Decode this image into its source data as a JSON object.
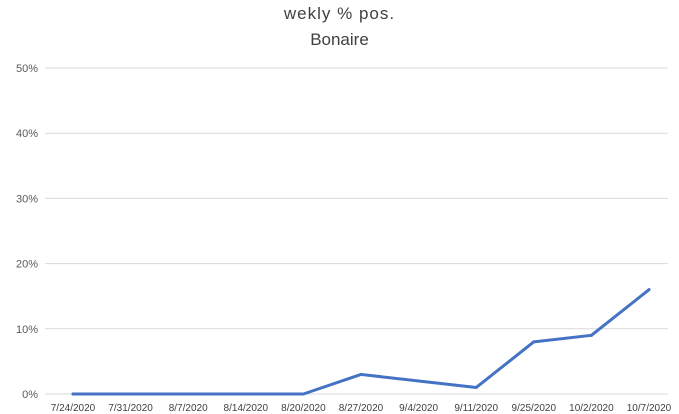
{
  "chart_data": {
    "type": "line",
    "title": "wekly  %  pos.",
    "subtitle": "Bonaire",
    "xlabel": "",
    "ylabel": "",
    "categories": [
      "7/24/2020",
      "7/31/2020",
      "8/7/2020",
      "8/14/2020",
      "8/20/2020",
      "8/27/2020",
      "9/4/2020",
      "9/11/2020",
      "9/25/2020",
      "10/2/2020",
      "10/7/2020"
    ],
    "series": [
      {
        "values": [
          0,
          0,
          0,
          0,
          0,
          3,
          2,
          1,
          8,
          9,
          16
        ],
        "color": "#4472c4"
      }
    ],
    "ylim": [
      0,
      50
    ],
    "yticks": [
      "0%",
      "10%",
      "20%",
      "30%",
      "40%",
      "50%"
    ],
    "grid": true,
    "legend": "none"
  }
}
